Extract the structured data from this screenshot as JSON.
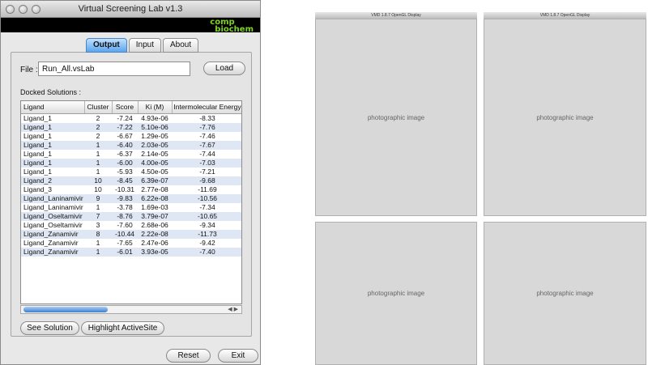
{
  "window": {
    "title": "Virtual Screening Lab v1.3"
  },
  "logo": {
    "line1": "comp",
    "line2": "biochem",
    "color": "#7ed321"
  },
  "tabs": [
    {
      "label": "Output",
      "active": true
    },
    {
      "label": "Input",
      "active": false
    },
    {
      "label": "About",
      "active": false
    }
  ],
  "file": {
    "label": "File :",
    "value": "Run_All.vsLab",
    "load_label": "Load"
  },
  "docked": {
    "label": "Docked Solutions :",
    "columns": [
      "Ligand",
      "Cluster",
      "Score",
      "Ki (M)",
      "Intermolecular Energy"
    ],
    "rows": [
      [
        "Ligand_1",
        "2",
        "-7.24",
        "4.93e-06",
        "-8.33"
      ],
      [
        "Ligand_1",
        "2",
        "-7.22",
        "5.10e-06",
        "-7.76"
      ],
      [
        "Ligand_1",
        "2",
        "-6.67",
        "1.29e-05",
        "-7.46"
      ],
      [
        "Ligand_1",
        "1",
        "-6.40",
        "2.03e-05",
        "-7.67"
      ],
      [
        "Ligand_1",
        "1",
        "-6.37",
        "2.14e-05",
        "-7.44"
      ],
      [
        "Ligand_1",
        "1",
        "-6.00",
        "4.00e-05",
        "-7.03"
      ],
      [
        "Ligand_1",
        "1",
        "-5.93",
        "4.50e-05",
        "-7.21"
      ],
      [
        "Ligand_2",
        "10",
        "-8.45",
        "6.39e-07",
        "-9.68"
      ],
      [
        "Ligand_3",
        "10",
        "-10.31",
        "2.77e-08",
        "-11.69"
      ],
      [
        "Ligand_Laninamivir",
        "9",
        "-9.83",
        "6.22e-08",
        "-10.56"
      ],
      [
        "Ligand_Laninamivir",
        "1",
        "-3.78",
        "1.69e-03",
        "-7.34"
      ],
      [
        "Ligand_Oseltamivir",
        "7",
        "-8.76",
        "3.79e-07",
        "-10.65"
      ],
      [
        "Ligand_Oseltamivir",
        "3",
        "-7.60",
        "2.68e-06",
        "-9.34"
      ],
      [
        "Ligand_Zanamivir",
        "8",
        "-10.44",
        "2.22e-08",
        "-11.73"
      ],
      [
        "Ligand_Zanamivir",
        "1",
        "-7.65",
        "2.47e-06",
        "-9.42"
      ],
      [
        "Ligand_Zanamivir",
        "1",
        "-6.01",
        "3.93e-05",
        "-7.40"
      ]
    ]
  },
  "buttons": {
    "see_solution": "See Solution",
    "highlight_activesite": "Highlight ActiveSite",
    "reset": "Reset",
    "exit": "Exit"
  },
  "images": {
    "vmd_title": "VMD 1.8.7 OpenGL Display"
  }
}
